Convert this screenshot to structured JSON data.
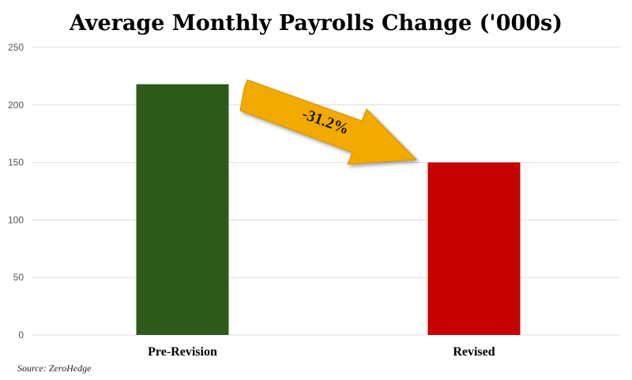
{
  "chart_data": {
    "type": "bar",
    "title": "Average Monthly Payrolls Change ('000s)",
    "categories": [
      "Pre-Revision",
      "Revised"
    ],
    "values": [
      218,
      150
    ],
    "bar_colors": [
      "#2d5a1b",
      "#c40000"
    ],
    "ylim": [
      0,
      250
    ],
    "yticks": [
      0,
      50,
      100,
      150,
      200,
      250
    ],
    "grid": true,
    "annotation": {
      "text": "-31.2%",
      "color": "#f2a900"
    },
    "source": "Source: ZeroHedge"
  }
}
